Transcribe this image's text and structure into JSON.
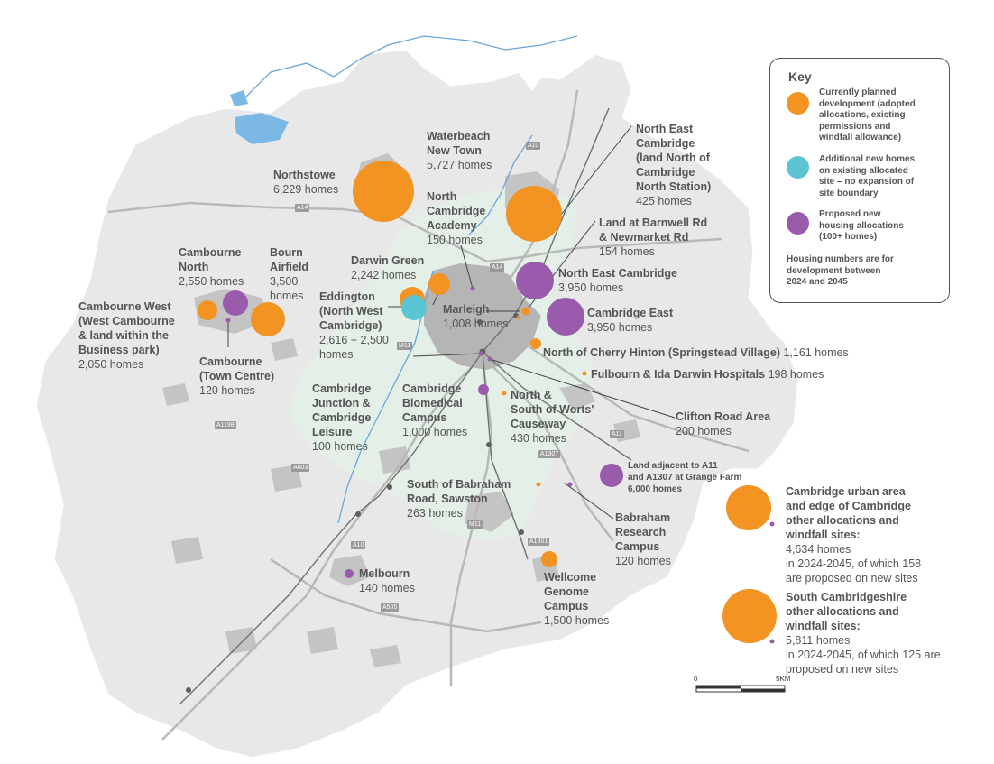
{
  "colors": {
    "planned": "#f39321",
    "additional": "#5bc5d3",
    "proposed": "#9b5bad",
    "green_belt": "#e3efe7",
    "district": "#e8e8e8",
    "urban": "#b0b0b0",
    "roads": "#bdbdbd",
    "water": "#5a9bd5"
  },
  "key": {
    "title": "Key",
    "items": [
      {
        "text": "Currently planned\ndevelopment (adopted\nallocations, existing\npermissions and\nwindfall allowance)",
        "color_ref": "planned"
      },
      {
        "text": "Additional new homes\non existing allocated\nsite – no expansion of\nsite boundary",
        "color_ref": "additional"
      },
      {
        "text": "Proposed new\nhousing allocations\n(100+ homes)",
        "color_ref": "proposed"
      }
    ],
    "note": "Housing numbers are for\ndevelopment between\n2024 and 2045"
  },
  "sites": [
    {
      "name": "Northstowe",
      "homes": "6,229 homes",
      "category": "planned"
    },
    {
      "name": "Waterbeach\nNew Town",
      "homes": "5,727 homes",
      "category": "planned"
    },
    {
      "name": "North East\nCambridge\n(land North of\nCambridge\nNorth Station)",
      "homes": "425 homes",
      "category": "planned"
    },
    {
      "name": "North\nCambridge\nAcademy",
      "homes": "150 homes",
      "category": "proposed"
    },
    {
      "name": "Land at Barnwell Rd\n& Newmarket Rd",
      "homes": "154 homes",
      "category": "planned"
    },
    {
      "name": "Darwin Green",
      "homes": "2,242 homes",
      "category": "planned"
    },
    {
      "name": "North East Cambridge",
      "homes": "3,950 homes",
      "category": "proposed"
    },
    {
      "name": "Cambourne\nNorth",
      "homes": "2,550 homes",
      "category": "proposed"
    },
    {
      "name": "Bourn\nAirfield",
      "homes": "3,500\nhomes",
      "category": "planned"
    },
    {
      "name": "Eddington\n(North West\nCambridge)",
      "homes": "2,616 + 2,500\nhomes",
      "category": "planned"
    },
    {
      "name": "Marleigh",
      "homes": "1,008 homes",
      "category": "planned"
    },
    {
      "name": "Cambridge East",
      "homes": "3,950 homes",
      "category": "proposed"
    },
    {
      "name": "Cambourne West\n(West Cambourne\n& land within the\nBusiness park)",
      "homes": "2,050 homes",
      "category": "planned"
    },
    {
      "name": "Cambourne\n(Town Centre)",
      "homes": "120 homes",
      "category": "proposed"
    },
    {
      "name": "North of Cherry Hinton (Springstead Village)",
      "homes": "1,161 homes",
      "category": "planned"
    },
    {
      "name": "Fulbourn & Ida Darwin Hospitals",
      "homes": "198 homes",
      "category": "planned"
    },
    {
      "name": "Cambridge\nJunction &\nCambridge\nLeisure",
      "homes": "100 homes",
      "category": "proposed"
    },
    {
      "name": "Cambridge\nBiomedical\nCampus",
      "homes": "1,000 homes",
      "category": "proposed"
    },
    {
      "name": "North &\nSouth of Worts'\nCauseway",
      "homes": "430 homes",
      "category": "planned"
    },
    {
      "name": "Clifton Road Area",
      "homes": "200 homes",
      "category": "proposed"
    },
    {
      "name": "Land adjacent to A11\nand A1307 at Grange Farm",
      "homes": "6,000 homes",
      "category": "proposed"
    },
    {
      "name": "South of Babraham\nRoad, Sawston",
      "homes": "263 homes",
      "category": "planned"
    },
    {
      "name": "Babraham\nResearch\nCampus",
      "homes": "120 homes",
      "category": "proposed"
    },
    {
      "name": "Cambridge urban area\nand edge of Cambridge\nother allocations and\nwindfall sites:",
      "homes": "4,634 homes\nin 2024-2045, of which 158\nare proposed on new sites",
      "category": "planned"
    },
    {
      "name": "Melbourn",
      "homes": "140 homes",
      "category": "proposed"
    },
    {
      "name": "Wellcome\nGenome\nCampus",
      "homes": "1,500 homes",
      "category": "planned"
    },
    {
      "name": "South Cambridgeshire\nother allocations and\nwindfall sites:",
      "homes": "5,811 homes\nin 2024-2045, of which 125 are\nproposed on new sites",
      "category": "planned"
    }
  ],
  "roads": [
    "A10",
    "A14",
    "A14",
    "A1198",
    "A603",
    "M11",
    "M11",
    "A10",
    "A505",
    "A11",
    "A1307",
    "A1301"
  ],
  "scale": {
    "start": "0",
    "end": "5KM"
  }
}
